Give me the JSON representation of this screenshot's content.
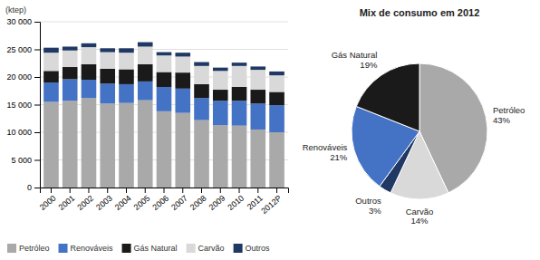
{
  "chart_data": [
    {
      "type": "bar",
      "stacked": true,
      "grid": true,
      "legend": "bottom",
      "y_label": "(ktep)",
      "categories": [
        "2000",
        "2001",
        "2002",
        "2003",
        "2004",
        "2005",
        "2006",
        "2007",
        "2008",
        "2009",
        "2010",
        "2011",
        "2012P"
      ],
      "series": [
        {
          "name": "Petróleo",
          "color": "#a9a9a9",
          "values": [
            15500,
            15700,
            16200,
            15200,
            15300,
            15800,
            13800,
            13500,
            12200,
            11300,
            11200,
            10500,
            10000
          ]
        },
        {
          "name": "Renováveis",
          "color": "#4472c4",
          "values": [
            3500,
            3900,
            3300,
            3600,
            3400,
            3400,
            4400,
            4400,
            4000,
            4400,
            4500,
            4700,
            4900
          ]
        },
        {
          "name": "Gás Natural",
          "color": "#1a1a1a",
          "values": [
            2100,
            2200,
            2800,
            2700,
            2700,
            3100,
            2700,
            2900,
            2500,
            2000,
            2500,
            2500,
            2400
          ]
        },
        {
          "name": "Carvão",
          "color": "#d9d9d9",
          "values": [
            3300,
            3000,
            3100,
            3000,
            3000,
            3200,
            3000,
            2900,
            3300,
            3400,
            3800,
            3600,
            3000
          ]
        },
        {
          "name": "Outros",
          "color": "#1f3864",
          "values": [
            900,
            700,
            700,
            700,
            800,
            800,
            600,
            700,
            700,
            600,
            600,
            600,
            700
          ]
        }
      ],
      "ylim": [
        0,
        30000
      ],
      "yticks": [
        0,
        {
          "value": 5000,
          "label": "5 000"
        },
        {
          "value": 10000,
          "label": "10 000"
        },
        {
          "value": 15000,
          "label": "15 000"
        },
        {
          "value": 20000,
          "label": "20 000"
        },
        {
          "value": 25000,
          "label": "25 000"
        },
        {
          "value": 30000,
          "label": "30 000"
        }
      ]
    },
    {
      "type": "pie",
      "title": "Mix de consumo em 2012",
      "data_labels": true,
      "categories": [
        "Petróleo",
        "Carvão",
        "Outros",
        "Renováveis",
        "Gás Natural"
      ],
      "values": [
        43,
        14,
        3,
        21,
        19
      ],
      "value_labels": [
        "43%",
        "14%",
        "3%",
        "21%",
        "19%"
      ],
      "colors": [
        "#a9a9a9",
        "#d9d9d9",
        "#1f3864",
        "#4472c4",
        "#1a1a1a"
      ]
    }
  ]
}
